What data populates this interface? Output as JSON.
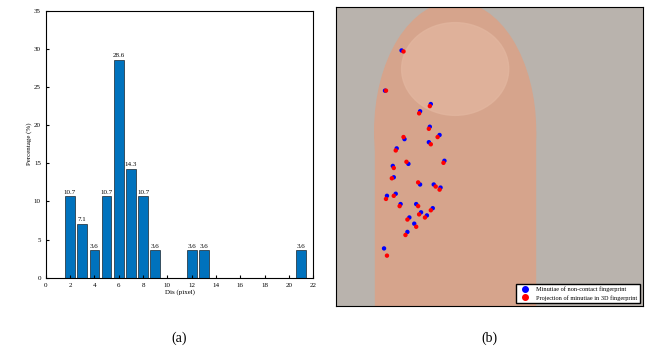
{
  "chart_data": [
    {
      "type": "bar",
      "caption": "(a)",
      "x": [
        2,
        3,
        4,
        5,
        6,
        7,
        8,
        9,
        12,
        13,
        21
      ],
      "values": [
        10.7,
        7.1,
        3.6,
        10.7,
        28.6,
        14.3,
        10.7,
        3.6,
        3.6,
        3.6,
        3.6
      ],
      "color": "#0072bd",
      "x_label": "Dis (pixel)",
      "y_label": "Percentage (%)",
      "xlim": [
        0,
        22
      ],
      "xticks": [
        0,
        2,
        4,
        6,
        8,
        10,
        12,
        14,
        16,
        18,
        20,
        22
      ],
      "ylim": [
        0,
        35
      ],
      "yticks": [
        0,
        5,
        10,
        15,
        20,
        25,
        30,
        35
      ],
      "data_labels": true
    },
    {
      "type": "scatter",
      "caption": "(b)",
      "xlim": [
        0,
        315
      ],
      "ylim": [
        290,
        0
      ],
      "tick_labels": false,
      "legend": "lower right",
      "series": [
        {
          "name": "Minutiae of non-contact fingerprint",
          "color": "#0000ff",
          "marker": "o",
          "x": [
            67,
            50,
            86,
            97,
            70,
            62,
            74,
            58,
            96,
            95,
            106,
            59,
            111,
            107,
            52,
            61,
            66,
            82,
            87,
            80,
            75,
            99,
            100,
            86,
            73,
            49,
            93
          ],
          "y": [
            42,
            81,
            101,
            94,
            128,
            137,
            152,
            154,
            116,
            131,
            124,
            165,
            149,
            175,
            183,
            181,
            191,
            191,
            199,
            210,
            204,
            195,
            172,
            172,
            218,
            234,
            202
          ]
        },
        {
          "name": "Projection of minutiae in 3D fingerprint",
          "color": "#ff0000",
          "marker": "o",
          "x": [
            69,
            51,
            85,
            96,
            69,
            61,
            72,
            59,
            95,
            97,
            104,
            57,
            110,
            106,
            51,
            59,
            65,
            84,
            85,
            82,
            73,
            97,
            102,
            84,
            71,
            52,
            91
          ],
          "y": [
            43,
            81,
            103,
            96,
            126,
            139,
            150,
            156,
            118,
            133,
            126,
            166,
            151,
            177,
            186,
            183,
            193,
            193,
            201,
            213,
            206,
            197,
            174,
            170,
            221,
            241,
            204
          ]
        }
      ]
    }
  ]
}
